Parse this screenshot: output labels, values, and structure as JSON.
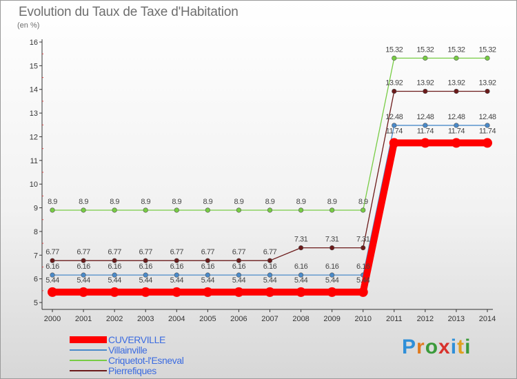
{
  "header": {
    "title": "Evolution du Taux de Taxe d'Habitation",
    "unit": "(en %)"
  },
  "brand": {
    "letters": [
      "P",
      "r",
      "o",
      "x",
      "i",
      "t",
      "i"
    ],
    "colors": [
      "#2f8fd8",
      "#e07a1f",
      "#3b9a3b",
      "#d8322d",
      "#2f8fd8",
      "#e0a01f",
      "#3b9a3b"
    ]
  },
  "chart_data": {
    "type": "line",
    "x": [
      "2000",
      "2001",
      "2002",
      "2003",
      "2004",
      "2005",
      "2006",
      "2007",
      "2008",
      "2009",
      "2010",
      "2011",
      "2012",
      "2013",
      "2014"
    ],
    "ylim": [
      5,
      16
    ],
    "yticks": [
      "5",
      "6",
      "7",
      "8",
      "9",
      "10",
      "11",
      "12",
      "13",
      "14",
      "15",
      "16"
    ],
    "grid": false,
    "legend_position": "bottom-left",
    "series": [
      {
        "name": "CUVERVILLE",
        "color": "#ff0000",
        "values": [
          5.44,
          5.44,
          5.44,
          5.44,
          5.44,
          5.44,
          5.44,
          5.44,
          5.44,
          5.44,
          5.44,
          11.74,
          11.74,
          11.74,
          11.74
        ],
        "labels": [
          "5.44",
          "5.44",
          "5.44",
          "5.44",
          "5.44",
          "5.44",
          "5.44",
          "5.44",
          "5.44",
          "5.44",
          "5.44",
          "11.74",
          "11.74",
          "11.74",
          "11.74"
        ]
      },
      {
        "name": "Villainville",
        "color": "#4a8ac9",
        "values": [
          6.16,
          6.16,
          6.16,
          6.16,
          6.16,
          6.16,
          6.16,
          6.16,
          6.16,
          6.16,
          6.16,
          12.48,
          12.48,
          12.48,
          12.48
        ],
        "labels": [
          "6.16",
          "6.16",
          "6.16",
          "6.16",
          "6.16",
          "6.16",
          "6.16",
          "6.16",
          "6.16",
          "6.16",
          "6.16",
          "12.48",
          "12.48",
          "12.48",
          "12.48"
        ]
      },
      {
        "name": "Criquetot-l'Esneval",
        "color": "#77cc44",
        "values": [
          8.9,
          8.9,
          8.9,
          8.9,
          8.9,
          8.9,
          8.9,
          8.9,
          8.9,
          8.9,
          8.9,
          15.32,
          15.32,
          15.32,
          15.32
        ],
        "labels": [
          "8.9",
          "8.9",
          "8.9",
          "8.9",
          "8.9",
          "8.9",
          "8.9",
          "8.9",
          "8.9",
          "8.9",
          "8.9",
          "15.32",
          "15.32",
          "15.32",
          "15.32"
        ]
      },
      {
        "name": "Pierrefiques",
        "color": "#6b1a1a",
        "values": [
          6.77,
          6.77,
          6.77,
          6.77,
          6.77,
          6.77,
          6.77,
          6.77,
          7.31,
          7.31,
          7.31,
          13.92,
          13.92,
          13.92,
          13.92
        ],
        "labels": [
          "6.77",
          "6.77",
          "6.77",
          "6.77",
          "6.77",
          "6.77",
          "6.77",
          "6.77",
          "7.31",
          "7.31",
          "7.31",
          "13.92",
          "13.92",
          "13.92",
          "13.92"
        ]
      }
    ]
  }
}
